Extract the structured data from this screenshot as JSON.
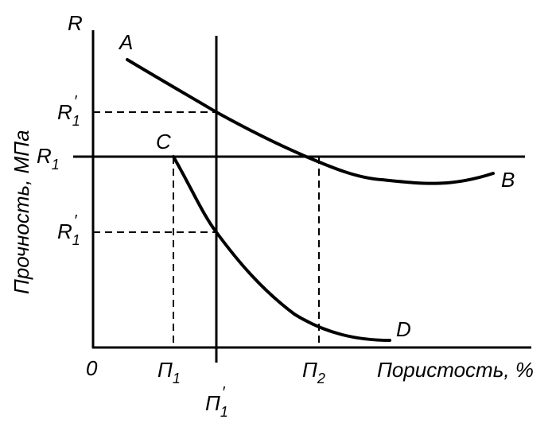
{
  "axis": {
    "y_label": "Прочность, МПа",
    "x_label": "Пористость, %",
    "y_symbol": "R",
    "origin": "0"
  },
  "curves": [
    {
      "start": "A",
      "end": "B"
    },
    {
      "start": "C",
      "end": "D"
    }
  ],
  "y_levels": [
    {
      "symbol": "R",
      "sub": "1",
      "prime": "′"
    },
    {
      "symbol": "R",
      "sub": "1"
    },
    {
      "symbol": "R",
      "sub": "1",
      "prime": "′"
    }
  ],
  "x_levels": [
    {
      "symbol": "П",
      "sub": "1"
    },
    {
      "symbol": "П",
      "sub": "1",
      "prime": "′"
    },
    {
      "symbol": "П",
      "sub": "2"
    }
  ]
}
